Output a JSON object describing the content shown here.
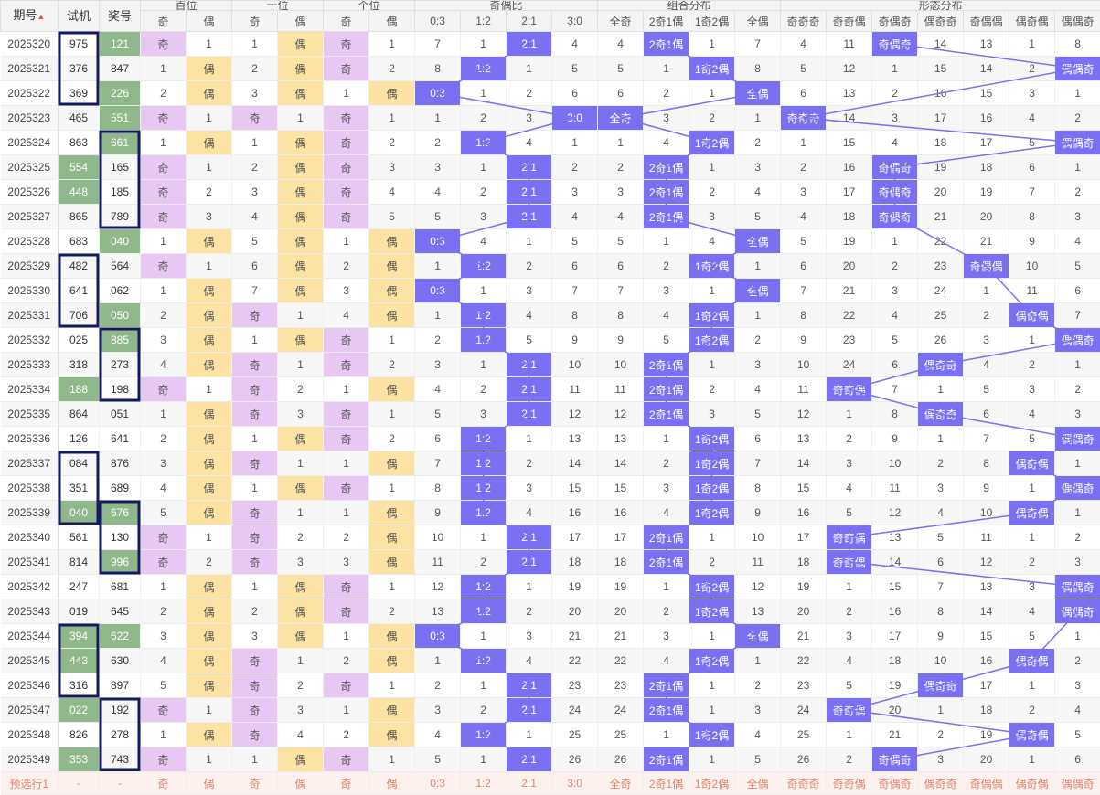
{
  "header": {
    "period": "期号",
    "try": "试机",
    "num": "奖号",
    "groups": [
      "百位",
      "十位",
      "个位",
      "奇偶比",
      "组合分布",
      "形态分布"
    ],
    "odd": "奇",
    "even": "偶",
    "ratio_cols": [
      "0:3",
      "1:2",
      "2:1",
      "3:0"
    ],
    "combo_cols": [
      "全奇",
      "2奇1偶",
      "1奇2偶",
      "全偶"
    ],
    "shape_cols": [
      "奇奇奇",
      "奇奇偶",
      "奇偶奇",
      "偶奇奇",
      "奇偶偶",
      "偶奇偶",
      "偶偶奇"
    ]
  },
  "rows": [
    {
      "p": "2025320",
      "t": "975",
      "n": "121",
      "c": [
        "奇",
        "1",
        "1",
        "偶",
        "奇",
        "1",
        "7",
        "1",
        "2:1",
        "4",
        "4",
        "2奇1偶",
        "1",
        "7",
        "4",
        "11",
        "奇偶奇",
        "14",
        "13",
        "1",
        "8"
      ]
    },
    {
      "p": "2025321",
      "t": "376",
      "n": "847",
      "c": [
        "1",
        "偶",
        "2",
        "偶",
        "奇",
        "2",
        "8",
        "1:2",
        "1",
        "5",
        "5",
        "1",
        "1奇2偶",
        "8",
        "5",
        "12",
        "1",
        "15",
        "14",
        "2",
        "偶偶奇"
      ]
    },
    {
      "p": "2025322",
      "t": "369",
      "n": "226",
      "c": [
        "2",
        "偶",
        "3",
        "偶",
        "1",
        "偶",
        "0:3",
        "1",
        "2",
        "6",
        "6",
        "2",
        "1",
        "全偶",
        "6",
        "13",
        "2",
        "16",
        "15",
        "3",
        "1"
      ]
    },
    {
      "p": "2025323",
      "t": "465",
      "n": "551",
      "c": [
        "奇",
        "1",
        "奇",
        "1",
        "奇",
        "1",
        "1",
        "2",
        "3",
        "3:0",
        "全奇",
        "3",
        "2",
        "1",
        "奇奇奇",
        "14",
        "3",
        "17",
        "16",
        "4",
        "2"
      ]
    },
    {
      "p": "2025324",
      "t": "863",
      "n": "661",
      "c": [
        "1",
        "偶",
        "1",
        "偶",
        "奇",
        "2",
        "2",
        "1:2",
        "4",
        "1",
        "1",
        "4",
        "1奇2偶",
        "2",
        "1",
        "15",
        "4",
        "18",
        "17",
        "5",
        "偶偶奇"
      ]
    },
    {
      "p": "2025325",
      "t": "554",
      "n": "165",
      "c": [
        "奇",
        "1",
        "2",
        "偶",
        "奇",
        "3",
        "3",
        "1",
        "2:1",
        "2",
        "2",
        "2奇1偶",
        "1",
        "3",
        "2",
        "16",
        "奇偶奇",
        "19",
        "18",
        "6",
        "1"
      ]
    },
    {
      "p": "2025326",
      "t": "448",
      "n": "185",
      "c": [
        "奇",
        "2",
        "3",
        "偶",
        "奇",
        "4",
        "4",
        "2",
        "2:1",
        "3",
        "3",
        "2奇1偶",
        "2",
        "4",
        "3",
        "17",
        "奇偶奇",
        "20",
        "19",
        "7",
        "2"
      ]
    },
    {
      "p": "2025327",
      "t": "865",
      "n": "789",
      "c": [
        "奇",
        "3",
        "4",
        "偶",
        "奇",
        "5",
        "5",
        "3",
        "2:1",
        "4",
        "4",
        "2奇1偶",
        "3",
        "5",
        "4",
        "18",
        "奇偶奇",
        "21",
        "20",
        "8",
        "3"
      ]
    },
    {
      "p": "2025328",
      "t": "683",
      "n": "040",
      "c": [
        "1",
        "偶",
        "5",
        "偶",
        "1",
        "偶",
        "0:3",
        "4",
        "1",
        "5",
        "5",
        "1",
        "4",
        "全偶",
        "5",
        "19",
        "1",
        "22",
        "21",
        "9",
        "4"
      ]
    },
    {
      "p": "2025329",
      "t": "482",
      "n": "564",
      "c": [
        "奇",
        "1",
        "6",
        "偶",
        "2",
        "偶",
        "1",
        "1:2",
        "2",
        "6",
        "6",
        "2",
        "1奇2偶",
        "1",
        "6",
        "20",
        "2",
        "23",
        "奇偶偶",
        "10",
        "5"
      ]
    },
    {
      "p": "2025330",
      "t": "641",
      "n": "062",
      "c": [
        "1",
        "偶",
        "7",
        "偶",
        "3",
        "偶",
        "0:3",
        "1",
        "3",
        "7",
        "7",
        "3",
        "1",
        "全偶",
        "7",
        "21",
        "3",
        "24",
        "1",
        "11",
        "6"
      ]
    },
    {
      "p": "2025331",
      "t": "706",
      "n": "050",
      "c": [
        "2",
        "偶",
        "奇",
        "1",
        "4",
        "偶",
        "1",
        "1:2",
        "4",
        "8",
        "8",
        "4",
        "1奇2偶",
        "1",
        "8",
        "22",
        "4",
        "25",
        "2",
        "偶奇偶",
        "7"
      ]
    },
    {
      "p": "2025332",
      "t": "025",
      "n": "885",
      "c": [
        "3",
        "偶",
        "1",
        "偶",
        "奇",
        "1",
        "2",
        "1:2",
        "5",
        "9",
        "9",
        "5",
        "1奇2偶",
        "2",
        "9",
        "23",
        "5",
        "26",
        "3",
        "1",
        "偶偶奇"
      ]
    },
    {
      "p": "2025333",
      "t": "318",
      "n": "273",
      "c": [
        "4",
        "偶",
        "奇",
        "1",
        "奇",
        "2",
        "3",
        "1",
        "2:1",
        "10",
        "10",
        "2奇1偶",
        "1",
        "3",
        "10",
        "24",
        "6",
        "偶奇奇",
        "4",
        "2",
        "1"
      ]
    },
    {
      "p": "2025334",
      "t": "188",
      "n": "198",
      "c": [
        "奇",
        "1",
        "奇",
        "2",
        "1",
        "偶",
        "4",
        "2",
        "2:1",
        "11",
        "11",
        "2奇1偶",
        "2",
        "4",
        "11",
        "奇奇偶",
        "7",
        "1",
        "5",
        "3",
        "2"
      ]
    },
    {
      "p": "2025335",
      "t": "864",
      "n": "051",
      "c": [
        "1",
        "偶",
        "奇",
        "3",
        "奇",
        "1",
        "5",
        "3",
        "2:1",
        "12",
        "12",
        "2奇1偶",
        "3",
        "5",
        "12",
        "1",
        "8",
        "偶奇奇",
        "6",
        "4",
        "3"
      ]
    },
    {
      "p": "2025336",
      "t": "126",
      "n": "641",
      "c": [
        "2",
        "偶",
        "1",
        "偶",
        "奇",
        "2",
        "6",
        "1:2",
        "1",
        "13",
        "13",
        "1",
        "1奇2偶",
        "6",
        "13",
        "2",
        "9",
        "1",
        "7",
        "5",
        "偶偶奇"
      ]
    },
    {
      "p": "2025337",
      "t": "084",
      "n": "876",
      "c": [
        "3",
        "偶",
        "奇",
        "1",
        "1",
        "偶",
        "7",
        "1:2",
        "2",
        "14",
        "14",
        "2",
        "1奇2偶",
        "7",
        "14",
        "3",
        "10",
        "2",
        "8",
        "偶奇偶",
        "1"
      ]
    },
    {
      "p": "2025338",
      "t": "351",
      "n": "689",
      "c": [
        "4",
        "偶",
        "1",
        "偶",
        "奇",
        "1",
        "8",
        "1:2",
        "3",
        "15",
        "15",
        "3",
        "1奇2偶",
        "8",
        "15",
        "4",
        "11",
        "3",
        "9",
        "1",
        "偶偶奇"
      ]
    },
    {
      "p": "2025339",
      "t": "040",
      "n": "676",
      "c": [
        "5",
        "偶",
        "奇",
        "1",
        "1",
        "偶",
        "9",
        "1:2",
        "4",
        "16",
        "16",
        "4",
        "1奇2偶",
        "9",
        "16",
        "5",
        "12",
        "4",
        "10",
        "偶奇偶",
        "1"
      ]
    },
    {
      "p": "2025340",
      "t": "561",
      "n": "130",
      "c": [
        "奇",
        "1",
        "奇",
        "2",
        "2",
        "偶",
        "10",
        "1",
        "2:1",
        "17",
        "17",
        "2奇1偶",
        "1",
        "10",
        "17",
        "奇奇偶",
        "13",
        "5",
        "11",
        "1",
        "2"
      ]
    },
    {
      "p": "2025341",
      "t": "814",
      "n": "996",
      "c": [
        "奇",
        "2",
        "奇",
        "3",
        "3",
        "偶",
        "11",
        "2",
        "2:1",
        "18",
        "18",
        "2奇1偶",
        "2",
        "11",
        "18",
        "奇奇偶",
        "14",
        "6",
        "12",
        "2",
        "3"
      ]
    },
    {
      "p": "2025342",
      "t": "247",
      "n": "681",
      "c": [
        "1",
        "偶",
        "1",
        "偶",
        "奇",
        "1",
        "12",
        "1:2",
        "1",
        "19",
        "19",
        "1",
        "1奇2偶",
        "12",
        "19",
        "1",
        "15",
        "7",
        "13",
        "3",
        "偶偶奇"
      ]
    },
    {
      "p": "2025343",
      "t": "019",
      "n": "645",
      "c": [
        "2",
        "偶",
        "2",
        "偶",
        "奇",
        "2",
        "13",
        "1:2",
        "2",
        "20",
        "20",
        "2",
        "1奇2偶",
        "13",
        "20",
        "2",
        "16",
        "8",
        "14",
        "4",
        "偶偶奇"
      ]
    },
    {
      "p": "2025344",
      "t": "394",
      "n": "622",
      "c": [
        "3",
        "偶",
        "3",
        "偶",
        "1",
        "偶",
        "0:3",
        "1",
        "3",
        "21",
        "21",
        "3",
        "1",
        "全偶",
        "21",
        "3",
        "17",
        "9",
        "15",
        "5",
        "1"
      ]
    },
    {
      "p": "2025345",
      "t": "443",
      "n": "630",
      "c": [
        "4",
        "偶",
        "奇",
        "1",
        "2",
        "偶",
        "1",
        "1:2",
        "4",
        "22",
        "22",
        "4",
        "1奇2偶",
        "1",
        "22",
        "4",
        "18",
        "10",
        "16",
        "偶奇偶",
        "2"
      ]
    },
    {
      "p": "2025346",
      "t": "316",
      "n": "897",
      "c": [
        "5",
        "偶",
        "奇",
        "2",
        "奇",
        "1",
        "2",
        "1",
        "2:1",
        "23",
        "23",
        "2奇1偶",
        "1",
        "2",
        "23",
        "5",
        "19",
        "偶奇奇",
        "17",
        "1",
        "3"
      ]
    },
    {
      "p": "2025347",
      "t": "022",
      "n": "192",
      "c": [
        "奇",
        "1",
        "奇",
        "3",
        "1",
        "偶",
        "3",
        "2",
        "2:1",
        "24",
        "24",
        "2奇1偶",
        "1",
        "3",
        "24",
        "奇奇偶",
        "20",
        "1",
        "18",
        "2",
        "4"
      ]
    },
    {
      "p": "2025348",
      "t": "826",
      "n": "278",
      "c": [
        "1",
        "偶",
        "奇",
        "4",
        "2",
        "偶",
        "4",
        "1:2",
        "1",
        "25",
        "25",
        "1",
        "1奇2偶",
        "4",
        "25",
        "1",
        "21",
        "2",
        "19",
        "偶奇偶",
        "5"
      ]
    },
    {
      "p": "2025349",
      "t": "353",
      "n": "743",
      "c": [
        "奇",
        "1",
        "1",
        "偶",
        "奇",
        "1",
        "5",
        "1",
        "2:1",
        "26",
        "26",
        "2奇1偶",
        "1",
        "5",
        "26",
        "2",
        "奇偶奇",
        "3",
        "20",
        "1",
        "6"
      ]
    }
  ],
  "green_try": [
    "2025325",
    "2025326",
    "2025334",
    "2025339",
    "2025344",
    "2025345",
    "2025347",
    "2025349"
  ],
  "green_num": [
    "2025320",
    "2025322",
    "2025323",
    "2025324",
    "2025328",
    "2025331",
    "2025332",
    "2025339",
    "2025341",
    "2025344"
  ],
  "pre_row": {
    "label": "预选行1",
    "dash1": "-",
    "dash2": "-",
    "cells": [
      "奇",
      "偶",
      "奇",
      "偶",
      "奇",
      "偶",
      "0:3",
      "1:2",
      "2:1",
      "3:0",
      "全奇",
      "2奇1偶",
      "1奇2偶",
      "全偶",
      "奇奇奇",
      "奇奇偶",
      "奇偶奇",
      "偶奇奇",
      "奇偶偶",
      "偶奇偶",
      "偶偶奇"
    ]
  },
  "colors": {
    "blue": "#7b6ff2",
    "purple": "#e6c8f2",
    "yellow": "#fde3a3",
    "green": "#8fb98a",
    "box": "#141a5e",
    "pre_text": "#e0856e"
  }
}
